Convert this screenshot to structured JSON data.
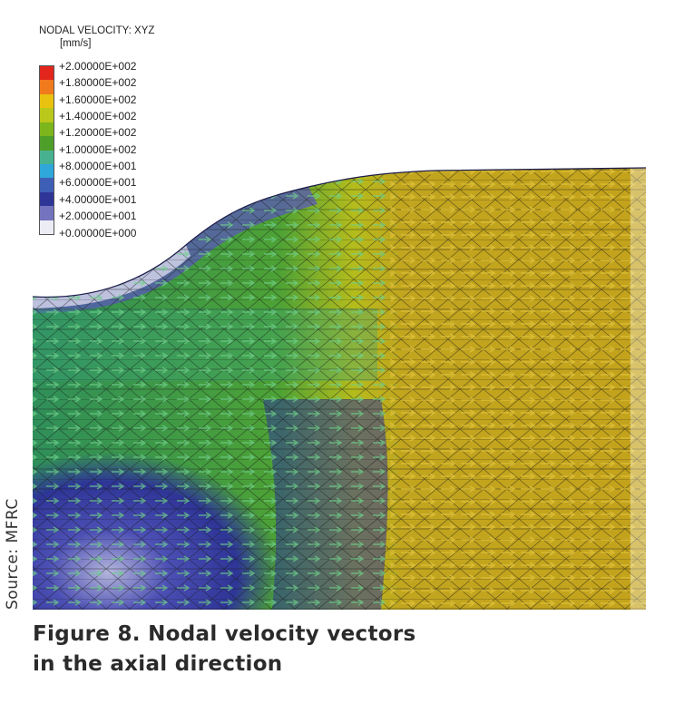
{
  "legend": {
    "title": "NODAL VELOCITY: XYZ",
    "unit": "[mm/s]",
    "colors": [
      "#e2261d",
      "#f07a1c",
      "#e8c20f",
      "#b9c81a",
      "#7cb51c",
      "#4e9e2a",
      "#48b290",
      "#2fa7da",
      "#3f5fb6",
      "#2e3597",
      "#7474be",
      "#ececf4"
    ],
    "labels": [
      "+2.00000E+002",
      "+1.80000E+002",
      "+1.60000E+002",
      "+1.40000E+002",
      "+1.20000E+002",
      "+1.00000E+002",
      "+8.00000E+001",
      "+6.00000E+001",
      "+4.00000E+001",
      "+2.00000E+001",
      "+0.00000E+000"
    ]
  },
  "source_note": "Source: MFRC",
  "caption": {
    "line1": "Figure 8. Nodal velocity vectors",
    "line2": "in the axial direction"
  }
}
